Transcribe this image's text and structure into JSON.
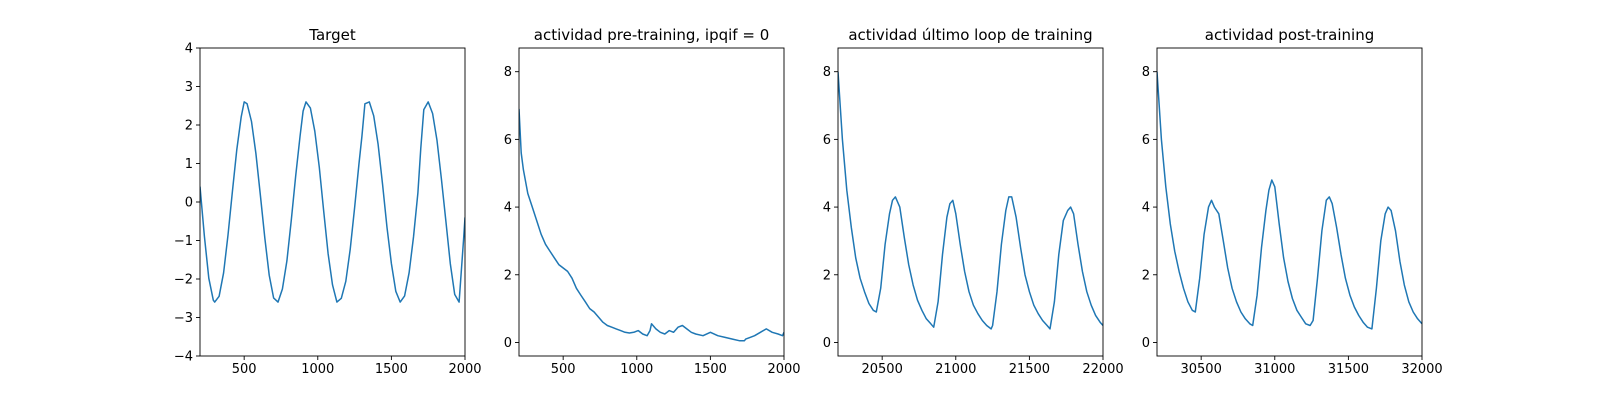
{
  "chart_data": [
    {
      "type": "line",
      "title": "Target",
      "xlabel": "",
      "ylabel": "",
      "xlim": [
        200,
        2000
      ],
      "ylim": [
        -4,
        4
      ],
      "xticks": [
        500,
        1000,
        1500,
        2000
      ],
      "yticks": [
        -4,
        -3,
        -2,
        -1,
        0,
        1,
        2,
        3,
        4
      ],
      "grid": false,
      "series": [
        {
          "color": "#1f77b4",
          "x": [
            200,
            230,
            260,
            290,
            300,
            330,
            360,
            390,
            420,
            450,
            480,
            500,
            520,
            550,
            580,
            610,
            640,
            670,
            700,
            730,
            760,
            790,
            820,
            850,
            880,
            900,
            920,
            950,
            980,
            1010,
            1040,
            1070,
            1100,
            1130,
            1160,
            1190,
            1220,
            1250,
            1280,
            1300,
            1320,
            1350,
            1380,
            1410,
            1440,
            1470,
            1500,
            1530,
            1560,
            1590,
            1620,
            1650,
            1680,
            1700,
            1720,
            1750,
            1780,
            1810,
            1840,
            1870,
            1900,
            1930,
            1960,
            1990,
            2000
          ],
          "y": [
            0.4,
            -0.89,
            -1.98,
            -2.55,
            -2.6,
            -2.45,
            -1.84,
            -0.86,
            0.27,
            1.36,
            2.21,
            2.6,
            2.55,
            2.09,
            1.26,
            0.17,
            -0.93,
            -1.9,
            -2.49,
            -2.6,
            -2.26,
            -1.53,
            -0.47,
            0.68,
            1.72,
            2.36,
            2.6,
            2.44,
            1.84,
            0.9,
            -0.24,
            -1.34,
            -2.15,
            -2.6,
            -2.5,
            -2.06,
            -1.23,
            -0.15,
            1.0,
            1.7,
            2.55,
            2.6,
            2.24,
            1.5,
            0.45,
            -0.66,
            -1.6,
            -2.32,
            -2.6,
            -2.44,
            -1.84,
            -0.91,
            0.24,
            1.4,
            2.4,
            2.6,
            2.3,
            1.6,
            0.6,
            -0.5,
            -1.6,
            -2.4,
            -2.6,
            -1.0,
            -0.4
          ]
        }
      ]
    },
    {
      "type": "line",
      "title": "actividad pre-training, ipqif = 0",
      "xlabel": "",
      "ylabel": "",
      "xlim": [
        200,
        2000
      ],
      "ylim": [
        -0.4,
        8.7
      ],
      "xticks": [
        500,
        1000,
        1500,
        2000
      ],
      "yticks": [
        0,
        2,
        4,
        6,
        8
      ],
      "grid": false,
      "series": [
        {
          "color": "#1f77b4",
          "x": [
            200,
            215,
            230,
            260,
            290,
            320,
            350,
            380,
            410,
            440,
            470,
            500,
            530,
            560,
            590,
            620,
            650,
            680,
            710,
            740,
            770,
            800,
            830,
            860,
            890,
            920,
            950,
            980,
            1010,
            1040,
            1070,
            1090,
            1100,
            1130,
            1160,
            1190,
            1220,
            1250,
            1280,
            1310,
            1340,
            1370,
            1400,
            1450,
            1500,
            1550,
            1600,
            1650,
            1700,
            1730,
            1740,
            1770,
            1800,
            1840,
            1880,
            1920,
            1960,
            1990,
            2000
          ],
          "y": [
            6.9,
            5.6,
            5.1,
            4.4,
            4.0,
            3.6,
            3.2,
            2.9,
            2.7,
            2.5,
            2.3,
            2.2,
            2.1,
            1.9,
            1.6,
            1.4,
            1.2,
            1.0,
            0.9,
            0.75,
            0.6,
            0.5,
            0.45,
            0.4,
            0.35,
            0.3,
            0.28,
            0.3,
            0.35,
            0.25,
            0.2,
            0.35,
            0.55,
            0.4,
            0.3,
            0.25,
            0.35,
            0.3,
            0.45,
            0.5,
            0.4,
            0.3,
            0.25,
            0.2,
            0.3,
            0.2,
            0.15,
            0.1,
            0.05,
            0.05,
            0.1,
            0.15,
            0.2,
            0.3,
            0.4,
            0.3,
            0.25,
            0.2,
            0.3
          ]
        }
      ]
    },
    {
      "type": "line",
      "title": "actividad último loop de training",
      "xlabel": "",
      "ylabel": "",
      "xlim": [
        20200,
        22000
      ],
      "ylim": [
        -0.4,
        8.7
      ],
      "xticks": [
        20500,
        21000,
        21500,
        22000
      ],
      "yticks": [
        0,
        2,
        4,
        6,
        8
      ],
      "grid": false,
      "series": [
        {
          "color": "#1f77b4",
          "x": [
            20200,
            20230,
            20260,
            20290,
            20320,
            20350,
            20380,
            20410,
            20440,
            20460,
            20490,
            20520,
            20550,
            20570,
            20590,
            20620,
            20650,
            20680,
            20710,
            20740,
            20770,
            20800,
            20830,
            20850,
            20880,
            20910,
            20940,
            20960,
            20980,
            21000,
            21030,
            21060,
            21090,
            21120,
            21150,
            21180,
            21210,
            21240,
            21250,
            21280,
            21310,
            21340,
            21360,
            21380,
            21410,
            21440,
            21470,
            21500,
            21530,
            21560,
            21590,
            21620,
            21640,
            21670,
            21700,
            21730,
            21760,
            21780,
            21800,
            21830,
            21860,
            21890,
            21920,
            21950,
            21980,
            22000
          ],
          "y": [
            8.0,
            6.0,
            4.5,
            3.4,
            2.5,
            1.9,
            1.5,
            1.15,
            0.95,
            0.9,
            1.6,
            2.9,
            3.8,
            4.2,
            4.3,
            4.0,
            3.1,
            2.3,
            1.7,
            1.25,
            0.95,
            0.7,
            0.55,
            0.45,
            1.2,
            2.6,
            3.7,
            4.1,
            4.2,
            3.8,
            2.9,
            2.1,
            1.5,
            1.1,
            0.85,
            0.65,
            0.5,
            0.4,
            0.5,
            1.5,
            2.9,
            3.9,
            4.3,
            4.3,
            3.7,
            2.8,
            2.0,
            1.5,
            1.1,
            0.85,
            0.65,
            0.5,
            0.4,
            1.2,
            2.6,
            3.6,
            3.9,
            4.0,
            3.8,
            2.9,
            2.1,
            1.5,
            1.1,
            0.8,
            0.6,
            0.5
          ]
        }
      ]
    },
    {
      "type": "line",
      "title": "actividad post-training",
      "xlabel": "",
      "ylabel": "",
      "xlim": [
        30200,
        32000
      ],
      "ylim": [
        -0.4,
        8.7
      ],
      "xticks": [
        30500,
        31000,
        31500,
        32000
      ],
      "yticks": [
        0,
        2,
        4,
        6,
        8
      ],
      "grid": false,
      "series": [
        {
          "color": "#1f77b4",
          "x": [
            30200,
            30230,
            30260,
            30290,
            30320,
            30350,
            30380,
            30410,
            30440,
            30460,
            30490,
            30520,
            30550,
            30570,
            30590,
            30620,
            30650,
            30680,
            30710,
            30740,
            30770,
            30800,
            30830,
            30850,
            30880,
            30910,
            30940,
            30960,
            30980,
            31000,
            31030,
            31060,
            31090,
            31120,
            31150,
            31180,
            31210,
            31240,
            31260,
            31290,
            31320,
            31350,
            31370,
            31390,
            31420,
            31450,
            31480,
            31510,
            31540,
            31570,
            31600,
            31630,
            31660,
            31690,
            31720,
            31750,
            31770,
            31790,
            31820,
            31850,
            31880,
            31910,
            31940,
            31970,
            32000
          ],
          "y": [
            8.0,
            6.0,
            4.6,
            3.5,
            2.7,
            2.1,
            1.6,
            1.2,
            0.95,
            0.9,
            1.9,
            3.2,
            4.0,
            4.2,
            4.0,
            3.8,
            3.0,
            2.2,
            1.6,
            1.2,
            0.9,
            0.7,
            0.55,
            0.5,
            1.4,
            2.8,
            3.9,
            4.5,
            4.8,
            4.6,
            3.5,
            2.5,
            1.8,
            1.3,
            0.95,
            0.75,
            0.55,
            0.5,
            0.65,
            1.9,
            3.3,
            4.2,
            4.3,
            4.1,
            3.4,
            2.6,
            1.9,
            1.4,
            1.05,
            0.8,
            0.6,
            0.45,
            0.4,
            1.6,
            3.0,
            3.8,
            4.0,
            3.9,
            3.3,
            2.4,
            1.7,
            1.2,
            0.9,
            0.7,
            0.55
          ]
        }
      ]
    }
  ]
}
